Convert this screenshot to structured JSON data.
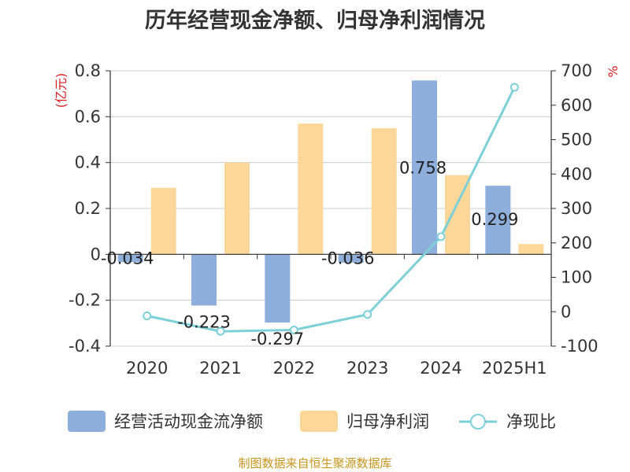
{
  "chart_data": {
    "type": "bar",
    "title": "历年经营现金净额、归母净利润情况",
    "categories": [
      "2020",
      "2021",
      "2022",
      "2023",
      "2024",
      "2025H1"
    ],
    "left_axis": {
      "unit_label": "(亿元)",
      "ylim": [
        -0.4,
        0.8
      ],
      "ticks": [
        "0.8",
        "0.6",
        "0.4",
        "0.2",
        "0",
        "-0.2",
        "-0.4"
      ]
    },
    "right_axis": {
      "unit_label": "%",
      "ylim": [
        -100,
        700
      ],
      "ticks": [
        "700",
        "600",
        "500",
        "400",
        "300",
        "200",
        "100",
        "0",
        "-100"
      ]
    },
    "series": [
      {
        "name": "经营活动现金流净额",
        "type": "bar",
        "axis": "left",
        "color": "#8eaedc",
        "values": [
          -0.034,
          -0.223,
          -0.297,
          -0.036,
          0.758,
          0.299
        ],
        "labels": [
          "-0.034",
          "-0.223",
          "-0.297",
          "-0.036",
          "0.758",
          "0.299"
        ]
      },
      {
        "name": "归母净利润",
        "type": "bar",
        "axis": "left",
        "color": "#fdd79a",
        "values": [
          0.29,
          0.4,
          0.57,
          0.55,
          0.345,
          0.045
        ]
      },
      {
        "name": "净现比",
        "type": "line",
        "axis": "right",
        "color": "#7ed0d8",
        "values": [
          -12,
          -57,
          -53,
          -8,
          218,
          652
        ]
      }
    ],
    "grid": true,
    "legend_position": "bottom"
  },
  "colors": {
    "title": "#333333",
    "unit_left": "#e31a1c",
    "unit_right": "#e31a1c",
    "gridline": "#cccccc",
    "source": "#c8961e"
  },
  "footer": {
    "source": "制图数据来自恒生聚源数据库"
  }
}
